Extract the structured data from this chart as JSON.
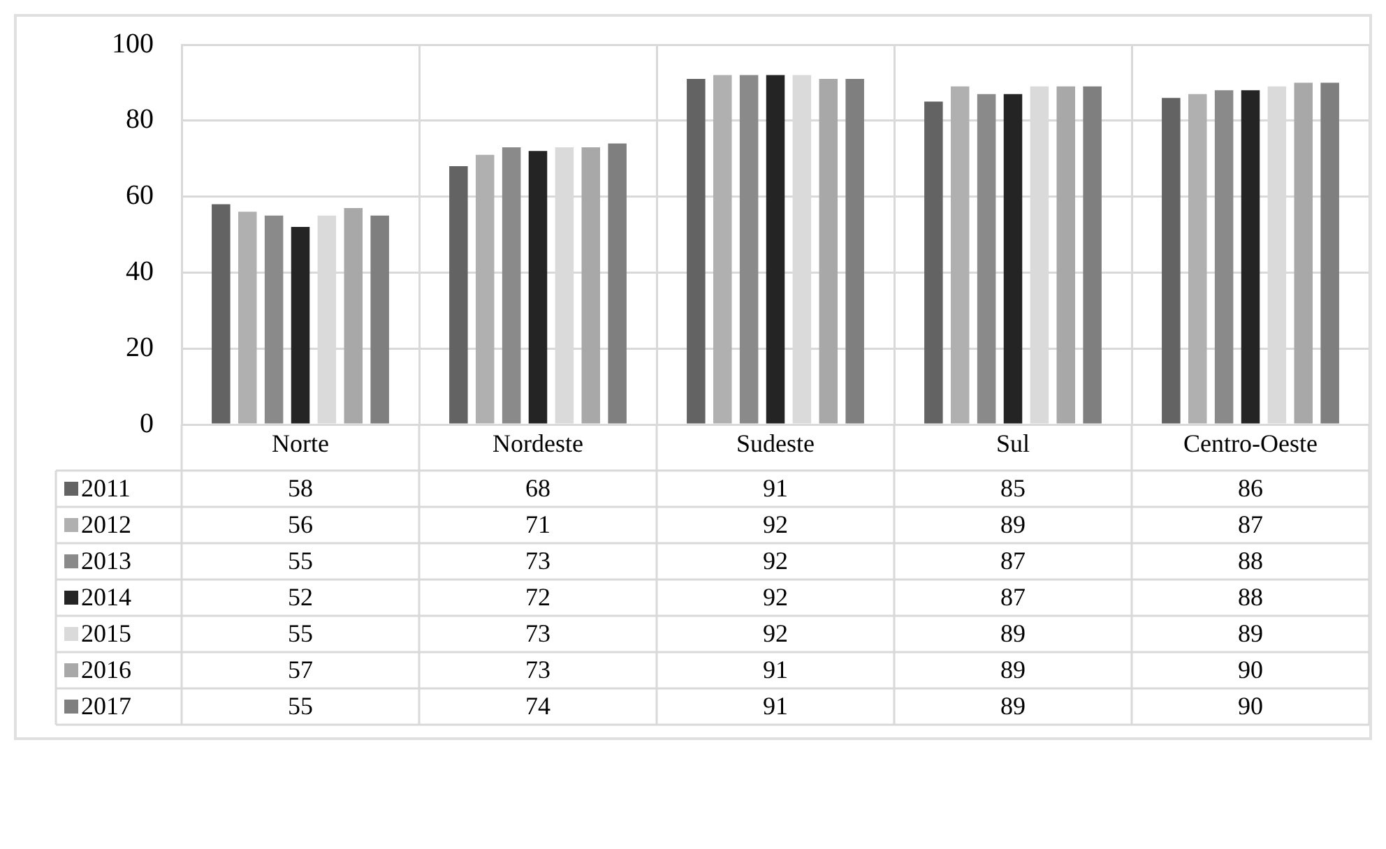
{
  "chart_data": {
    "type": "bar",
    "categories": [
      "Norte",
      "Nordeste",
      "Sudeste",
      "Sul",
      "Centro-Oeste"
    ],
    "series": [
      {
        "name": "2011",
        "color": "#636363",
        "values": [
          58,
          68,
          91,
          85,
          86
        ]
      },
      {
        "name": "2012",
        "color": "#b0b0b0",
        "values": [
          56,
          71,
          92,
          89,
          87
        ]
      },
      {
        "name": "2013",
        "color": "#8a8a8a",
        "values": [
          55,
          73,
          92,
          87,
          88
        ]
      },
      {
        "name": "2014",
        "color": "#242424",
        "values": [
          52,
          72,
          92,
          87,
          88
        ]
      },
      {
        "name": "2015",
        "color": "#dadada",
        "values": [
          55,
          73,
          92,
          89,
          89
        ]
      },
      {
        "name": "2016",
        "color": "#a8a8a8",
        "values": [
          57,
          73,
          91,
          89,
          90
        ]
      },
      {
        "name": "2017",
        "color": "#7f7f7f",
        "values": [
          55,
          74,
          91,
          89,
          90
        ]
      }
    ],
    "ylim": [
      0,
      100
    ],
    "yticks": [
      0,
      20,
      40,
      60,
      80,
      100
    ],
    "grid": true,
    "legend": "bottom",
    "data_labels": true
  }
}
